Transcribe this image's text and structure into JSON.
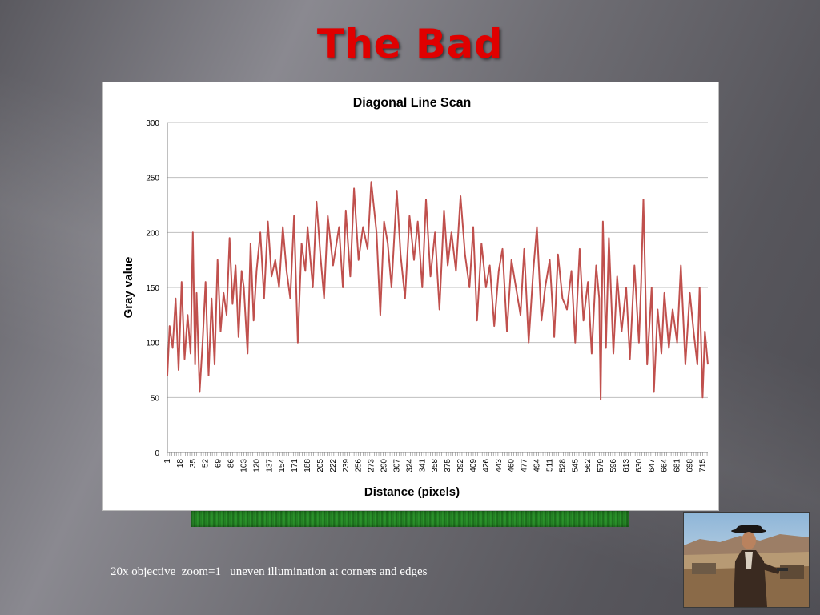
{
  "slide": {
    "title": "The Bad",
    "caption": "20x objective  zoom=1   uneven illumination at corners and edges"
  },
  "colors": {
    "title": "#e00000",
    "line": "#c0504d",
    "grid": "#bfbfbf"
  },
  "chart_data": {
    "type": "line",
    "title": "Diagonal Line Scan",
    "xlabel": "Distance (pixels)",
    "ylabel": "Gray value",
    "ylim": [
      0,
      300
    ],
    "yticks": [
      0,
      50,
      100,
      150,
      200,
      250,
      300
    ],
    "xlim": [
      1,
      722
    ],
    "xticks": [
      1,
      18,
      35,
      52,
      69,
      86,
      103,
      120,
      137,
      154,
      171,
      188,
      205,
      222,
      239,
      256,
      273,
      290,
      307,
      324,
      341,
      358,
      375,
      392,
      409,
      426,
      443,
      460,
      477,
      494,
      511,
      528,
      545,
      562,
      579,
      596,
      613,
      630,
      647,
      664,
      681,
      698,
      715
    ],
    "grid": true,
    "legend": "none",
    "series": [
      {
        "x": [
          1,
          4,
          8,
          12,
          16,
          20,
          24,
          28,
          32,
          35,
          38,
          40,
          44,
          48,
          52,
          56,
          60,
          64,
          68,
          72,
          76,
          80,
          84,
          88,
          92,
          96,
          100,
          103,
          108,
          112,
          116,
          120,
          125,
          130,
          135,
          140,
          145,
          150,
          155,
          160,
          165,
          170,
          175,
          180,
          185,
          188,
          195,
          200,
          205,
          210,
          215,
          222,
          230,
          235,
          239,
          245,
          250,
          256,
          262,
          268,
          273,
          280,
          285,
          290,
          295,
          300,
          307,
          312,
          318,
          324,
          330,
          335,
          341,
          346,
          352,
          358,
          364,
          370,
          375,
          380,
          386,
          392,
          398,
          404,
          409,
          414,
          420,
          426,
          431,
          437,
          443,
          448,
          454,
          460,
          466,
          472,
          477,
          483,
          489,
          494,
          500,
          505,
          511,
          517,
          522,
          528,
          534,
          540,
          545,
          551,
          556,
          562,
          567,
          573,
          577,
          579,
          582,
          586,
          590,
          596,
          601,
          607,
          613,
          618,
          624,
          630,
          633,
          636,
          641,
          647,
          650,
          655,
          660,
          664,
          670,
          675,
          681,
          686,
          692,
          698,
          703,
          708,
          711,
          715,
          718,
          722
        ],
        "values": [
          70,
          115,
          95,
          140,
          75,
          155,
          85,
          125,
          90,
          200,
          80,
          145,
          55,
          100,
          155,
          70,
          140,
          80,
          175,
          110,
          145,
          125,
          195,
          135,
          170,
          105,
          165,
          150,
          90,
          190,
          120,
          165,
          200,
          140,
          210,
          160,
          175,
          150,
          205,
          165,
          140,
          215,
          100,
          190,
          165,
          205,
          150,
          228,
          180,
          140,
          215,
          170,
          205,
          150,
          220,
          160,
          240,
          175,
          205,
          185,
          246,
          200,
          125,
          210,
          190,
          150,
          238,
          180,
          140,
          215,
          175,
          210,
          150,
          230,
          160,
          200,
          130,
          220,
          170,
          200,
          165,
          233,
          180,
          150,
          205,
          120,
          190,
          150,
          170,
          115,
          165,
          185,
          110,
          175,
          150,
          125,
          185,
          100,
          165,
          205,
          120,
          150,
          175,
          105,
          180,
          140,
          130,
          165,
          100,
          185,
          120,
          155,
          90,
          170,
          140,
          48,
          210,
          95,
          195,
          90,
          160,
          110,
          150,
          85,
          170,
          100,
          155,
          230,
          80,
          150,
          55,
          130,
          90,
          145,
          95,
          130,
          100,
          170,
          80,
          145,
          110,
          80,
          150,
          50,
          110,
          80
        ]
      }
    ]
  }
}
